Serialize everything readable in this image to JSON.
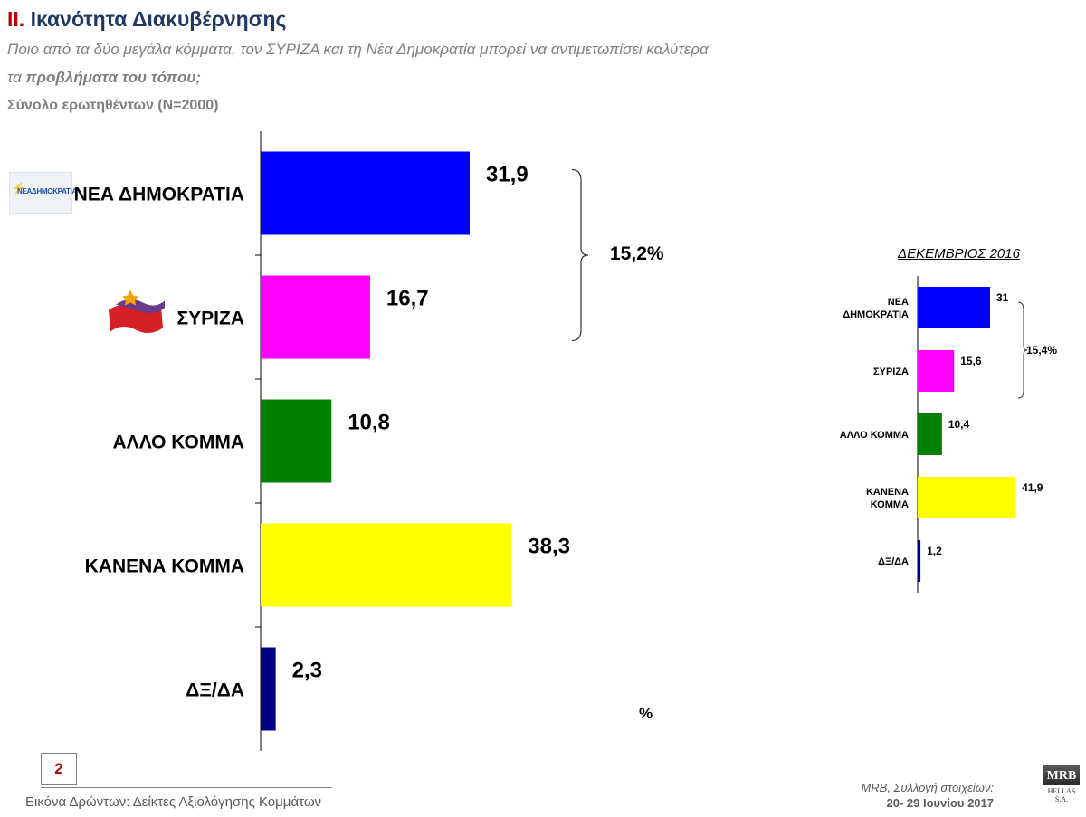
{
  "header": {
    "number": "II.",
    "title": "Ικανότητα Διακυβέρνησης",
    "question_line1": "Ποιο από τα δύο μεγάλα κόμματα, τον ΣΥΡΙΖΑ και τη Νέα Δημοκρατία μπορεί να αντιμετωπίσει καλύτερα",
    "question_line2_pre": "τα ",
    "question_line2_bold": "προβλήματα του τόπου;",
    "sample": "Σύνολο ερωτηθέντων (N=2000)"
  },
  "logos": {
    "nd_text": "ΝΕΑΔΗΜΟΚΡΑΤΙΑ",
    "mrb_top": "MRB",
    "mrb_bottom": "HELLAS S.A."
  },
  "chart_data": [
    {
      "type": "bar",
      "orientation": "horizontal",
      "categories": [
        "ΝΕΑ ΔΗΜΟΚΡΑΤΙΑ",
        "ΣΥΡΙΖΑ",
        "ΑΛΛΟ ΚΟΜΜΑ",
        "ΚΑΝΕΝΑ ΚΟΜΜΑ",
        "ΔΞ/ΔΑ"
      ],
      "values": [
        31.9,
        16.7,
        10.8,
        38.3,
        2.3
      ],
      "value_labels": [
        "31,9",
        "16,7",
        "10,8",
        "38,3",
        "2,3"
      ],
      "colors": [
        "#0000ff",
        "#ff00ff",
        "#008000",
        "#ffff00",
        "#000080"
      ],
      "bracket_label": "15,2%",
      "unit_label": "%",
      "xlim": [
        0,
        40
      ]
    },
    {
      "type": "bar",
      "orientation": "horizontal",
      "title": "ΔΕΚΕΜΒΡΙΟΣ 2016",
      "categories": [
        [
          "ΝΕΑ",
          "ΔΗΜΟΚΡΑΤΙΑ"
        ],
        [
          "ΣΥΡΙΖΑ"
        ],
        [
          "ΑΛΛΟ ΚΟΜΜΑ"
        ],
        [
          "ΚΑΝΕΝΑ",
          "ΚΟΜΜΑ"
        ],
        [
          "ΔΞ/ΔΑ"
        ]
      ],
      "values": [
        31,
        15.6,
        10.4,
        41.9,
        1.2
      ],
      "value_labels": [
        "31",
        "15,6",
        "10,4",
        "41,9",
        "1,2"
      ],
      "colors": [
        "#0000ff",
        "#ff00ff",
        "#008000",
        "#ffff00",
        "#000080"
      ],
      "bracket_label": "15,4%",
      "xlim": [
        0,
        40
      ]
    }
  ],
  "footer": {
    "page_number": "2",
    "left_text": "Εικόνα Δρώντων: Δείκτες Αξιολόγησης  Κομμάτων",
    "right_line1": "MRB, Συλλογή στοιχείων:",
    "right_line2": "20- 29  Ιουνίου 2017"
  }
}
